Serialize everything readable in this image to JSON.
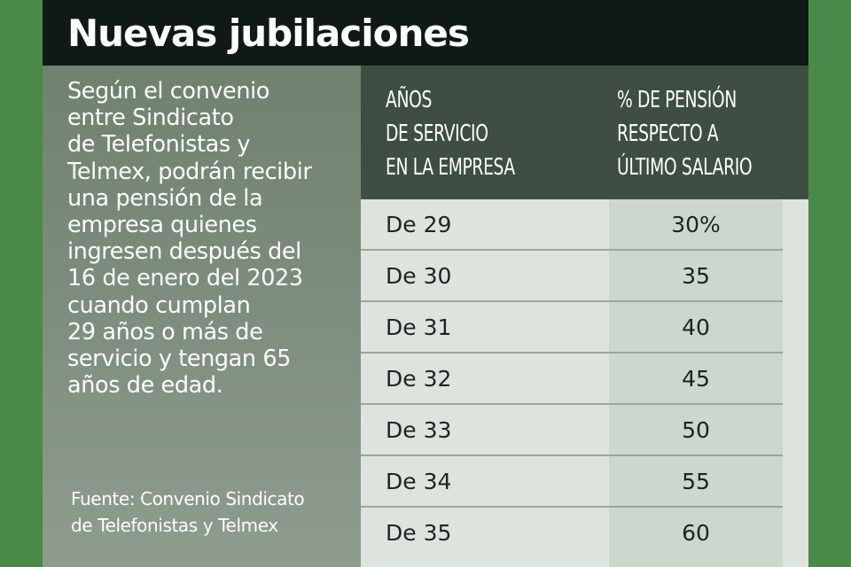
{
  "header": {
    "title": "Nuevas jubilaciones"
  },
  "intro": {
    "text": "Según el convenio\nentre Sindicato\nde Telefonistas y\nTelmex, podrán recibir\nuna pensión de la\nempresa quienes\ningresen después del\n16 de enero del 2023\ncuando cumplan\n29 años o más de\nservicio y tengan 65\naños de edad.",
    "source": "Fuente: Convenio Sindicato\nde Telefonistas y Telmex"
  },
  "table": {
    "headers": {
      "years": "AÑOS\nDE SERVICIO\nEN LA EMPRESA",
      "pension": "% DE PENSIÓN\nRESPECTO A\nÚLTIMO SALARIO"
    },
    "rows": [
      {
        "years": "De 29",
        "pension": "30%"
      },
      {
        "years": "De 30",
        "pension": "35"
      },
      {
        "years": "De 31",
        "pension": "40"
      },
      {
        "years": "De 32",
        "pension": "45"
      },
      {
        "years": "De 33",
        "pension": "50"
      },
      {
        "years": "De 34",
        "pension": "55"
      },
      {
        "years": "De 35",
        "pension": "60"
      }
    ]
  },
  "colors": {
    "outer_green": "#4a8a48",
    "title_bar": "#0f1a16",
    "header_bg": "#3e4e42",
    "table_bg": "#dde4dd",
    "pension_col_bg": "#cdd7cd"
  }
}
